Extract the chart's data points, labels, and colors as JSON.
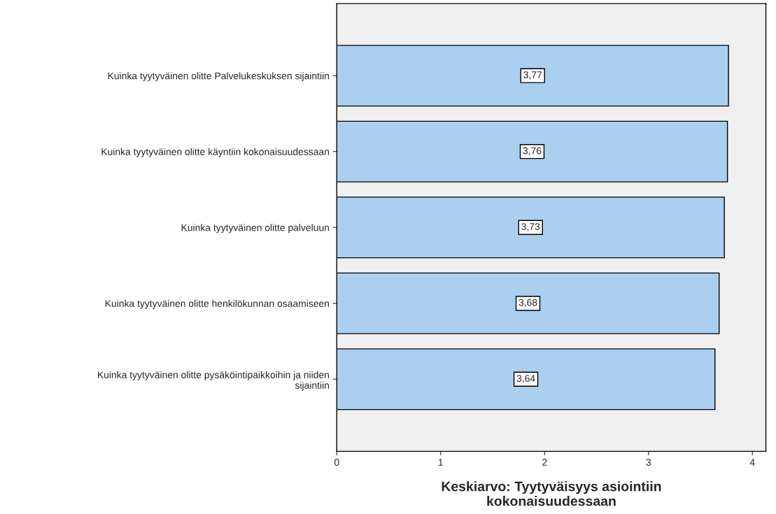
{
  "chart_data": {
    "type": "bar",
    "orientation": "horizontal",
    "xlabel": "Keskiarvo: Tyytyväisyys asiointiin\nkokonaisuudessaan",
    "categories": [
      "Kuinka tyytyväinen olitte Palvelukeskuksen sijaintiin",
      "Kuinka tyytyväinen olitte käyntiin kokonaisuudessaan",
      "Kuinka tyytyväinen olitte palveluun",
      "Kuinka tyytyväinen olitte henkilökunnan osaamiseen",
      "Kuinka tyytyväinen olitte pysäköintipaikkoihin ja niiden\nsijaintiin"
    ],
    "values": [
      3.77,
      3.76,
      3.73,
      3.68,
      3.64
    ],
    "value_labels": [
      "3,77",
      "3,76",
      "3,73",
      "3,68",
      "3,64"
    ],
    "color": "#abcfee",
    "xlim": [
      0,
      4.13
    ],
    "xticks": [
      0,
      1,
      2,
      3,
      4
    ],
    "grid": false,
    "legend": false
  }
}
